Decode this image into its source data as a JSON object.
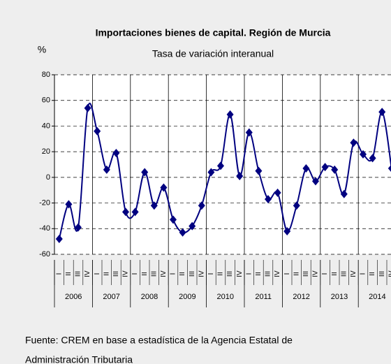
{
  "chart_data": {
    "type": "line",
    "title": "Importaciones bienes de capital. Región de Murcia",
    "subtitle": "Tasa de variación interanual",
    "y_label": "%",
    "categories": [
      "I",
      "II",
      "III",
      "IV",
      "I",
      "II",
      "III",
      "IV",
      "I",
      "II",
      "III",
      "IV",
      "I",
      "II",
      "III",
      "IV",
      "I",
      "II",
      "III",
      "IV",
      "I",
      "II",
      "III",
      "IV",
      "I",
      "II",
      "III",
      "IV",
      "I",
      "II",
      "III",
      "IV",
      "I",
      "II",
      "III",
      "IV"
    ],
    "years": [
      "2006",
      "2007",
      "2008",
      "2009",
      "2010",
      "2011",
      "2012",
      "2013",
      "2014"
    ],
    "series": [
      {
        "name": "Tasa de variación interanual",
        "color": "#000080",
        "values": [
          -48,
          -21,
          -39,
          54,
          36,
          6,
          19,
          -27,
          -27,
          4,
          -22,
          -8,
          -33,
          -43,
          -38,
          -22,
          4,
          9,
          49,
          1,
          35,
          5,
          -17,
          -12,
          -42,
          -22,
          7,
          -3,
          8,
          6,
          -13,
          27,
          18,
          15,
          51,
          7
        ]
      }
    ],
    "ylim": [
      -60,
      80
    ],
    "yticks": [
      -60,
      -40,
      -20,
      0,
      20,
      40,
      60,
      80
    ],
    "grid": true,
    "source": [
      "Fuente: CREM en base a estadística de la Agencia Estatal de",
      "Administración Tributaria"
    ]
  }
}
